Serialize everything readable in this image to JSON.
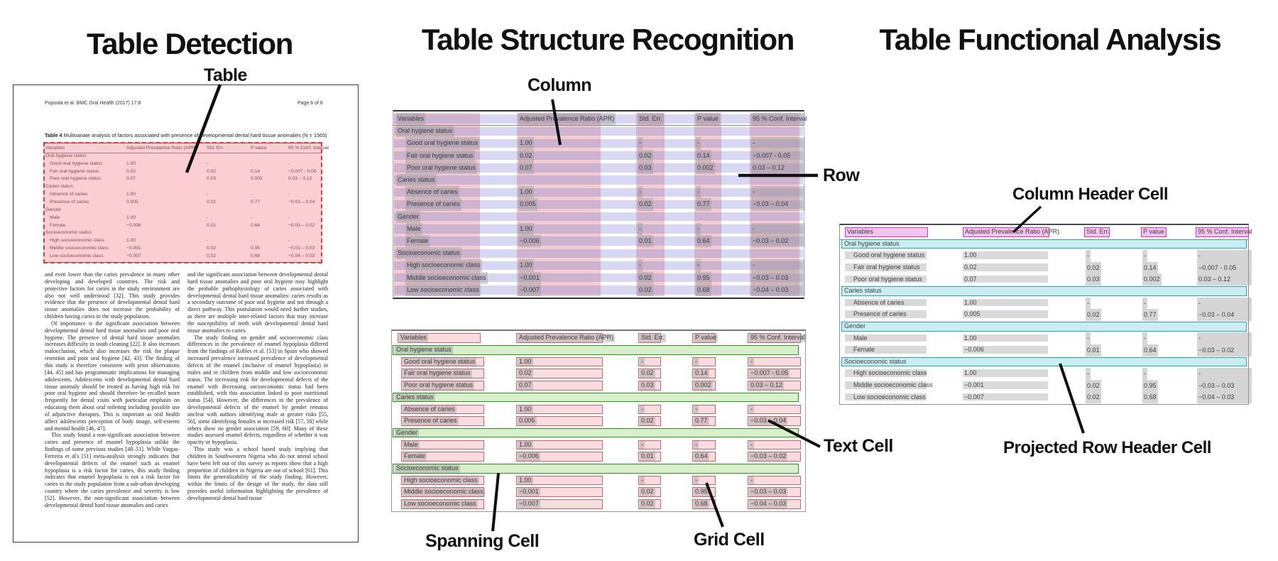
{
  "panels": {
    "detection": {
      "title": "Table Detection"
    },
    "structure": {
      "title": "Table Structure Recognition"
    },
    "functional": {
      "title": "Table Functional Analysis"
    }
  },
  "callouts": {
    "table": "Table",
    "column": "Column",
    "row": "Row",
    "spanning_cell": "Spanning Cell",
    "grid_cell": "Grid Cell",
    "text_cell": "Text Cell",
    "column_header_cell": "Column Header Cell",
    "projected_row_header_cell": "Projected Row Header Cell"
  },
  "document": {
    "header_left": "Popoola et al. BMC Oral Health  (2017) 17:8",
    "header_right": "Page 6 of 8",
    "caption_label": "Table 4",
    "caption_text": " Multivariate analysis of factors associated with presence of developmental dental hard tissue anomalies (N = 1565)",
    "body_col1": [
      "and even lower than the caries prevalence in many other developing and developed countries. The risk and protective factors for caries in the study environment are also not well understood [32]. This study provides evidence that the presence of developmental dental hard tissue anomalies does not increase the probability of children having caries in the study population.",
      "Of importance is the significant association between developmental dental hard tissue anomalies and poor oral hygiene. The presence of dental hard tissue anomalies increases difficulty in tooth cleaning [22]. It also increases malocclusion, which also increases the risk for plaque retention and poor oral hygiene [42, 43]. The finding of this study is therefore consistent with prior observations [44, 45] and has programmatic implications for managing adolescents. Adolescents with developmental dental hard tissue anomaly should be treated as having high risk for poor oral hygiene and should therefore be recalled more frequently for dental visits with particular emphasis on educating them about oral toileting including possible use of adjunctive therapies. This is important as oral health affect adolescents perception of body image, self-esteem and mental health [46, 47].",
      "This study found a non-significant association between caries and presence of enamel hypoplasia unlike the findings of some previous studies [48–51]. While Vargas-Ferreira et al's [51] meta-analysis strongly indicates that developmental defects of the enamel such as enamel hypoplasia is a risk factor for caries, this study finding indicates that enamel hypoplasia is not a risk factor for caries in the study population from a sub-urban developing country where the caries prevalence and severity is low [52]. However, the non-significant association between developmental dental hard tissue anomalies and caries"
    ],
    "body_col2": [
      "and the significant association between developmental dental hard tissue anomalies and poor oral hygiene may highlight the probable pathophysiology of caries associated with developmental dental hard tissue anomalies: caries results as a secondary outcome of poor oral hygiene and not through a direct pathway. This postulation would need further studies, as there are multiple inter-related factors that may increase the susceptibility of teeth with developmental dental hard tissue anomalies to caries.",
      "The study finding on gender and socioeconomic class differences in the prevalence of enamel hypoplasia differed from the findings of Robles et al. [53] in Spain who showed increased prevalence increased prevalence of developmental defects of the enamel (inclusive of enamel hypoplasia) in males and in children from middle and low socioeconomic status. The increasing risk for developmental defects of the enamel with decreasing socioeconomic status had been established, with this association linked to poor nutritional status [54]. However, the differences in the prevalence of developmental defects of the enamel by gender remains unclear with authors identifying male at greater risks [55, 56], some identifying females at increased risk [57, 58] while others show no gender association [59, 60]. Many of these studies assessed enamel defects, regardless of whether it was opacity or hypoplasia.",
      "This study was a school based study implying that children in Southwestern Nigeria who do not attend school have been left out of this survey as reports show that a high proportion of children in Nigeria are out of school [61]. This limits the generalizability of the study finding. However, within the limits of the design of the study, the data still provides useful information highlighting the prevalence of developmental dental hard tissue"
    ]
  },
  "table": {
    "headers": [
      "Variables",
      "Adjusted Prevalence Ratio (APR)",
      "Std. Err.",
      "P value",
      "95 % Conf. Interval"
    ],
    "rows": [
      {
        "type": "section",
        "label": "Oral hygiene status"
      },
      {
        "type": "data",
        "label": "Good oral hygiene status",
        "apr": "1.00",
        "se": "-",
        "p": "-",
        "ci": "-"
      },
      {
        "type": "data",
        "label": "Fair oral hygiene status",
        "apr": "0.02",
        "se": "0.02",
        "p": "0.14",
        "ci": "−0.007 - 0.05"
      },
      {
        "type": "data",
        "label": "Poor oral hygiene status",
        "apr": "0.07",
        "se": "0.03",
        "p": "0.002",
        "ci": "0.03 – 0.12"
      },
      {
        "type": "section",
        "label": "Caries status"
      },
      {
        "type": "data",
        "label": "Absence of caries",
        "apr": "1.00",
        "se": "-",
        "p": "-",
        "ci": "-"
      },
      {
        "type": "data",
        "label": "Presence of caries",
        "apr": "0.005",
        "se": "0.02",
        "p": "0.77",
        "ci": "−0.03 – 0.04"
      },
      {
        "type": "section",
        "label": "Gender"
      },
      {
        "type": "data",
        "label": "Male",
        "apr": "1.00",
        "se": "-",
        "p": "-",
        "ci": "-"
      },
      {
        "type": "data",
        "label": "Female",
        "apr": "−0.006",
        "se": "0.01",
        "p": "0.64",
        "ci": "−0.03 – 0.02"
      },
      {
        "type": "section",
        "label": "Socioeconomic status"
      },
      {
        "type": "data",
        "label": "High socioeconomic class",
        "apr": "1.00",
        "se": "-",
        "p": "-",
        "ci": "-"
      },
      {
        "type": "data",
        "label": "Middle socioeconomic class",
        "apr": "−0.001",
        "se": "0.02",
        "p": "0.95",
        "ci": "−0.03 – 0.03"
      },
      {
        "type": "data",
        "label": "Low socioeconomic class",
        "apr": "−0.007",
        "se": "0.02",
        "p": "0.68",
        "ci": "−0.04 – 0.03"
      }
    ]
  },
  "colors": {
    "column_overlay": "rgba(213,86,99,0.30)",
    "row_overlay": "rgba(110,110,214,0.27)",
    "grid_cell_fill": "#fadcdf",
    "grid_cell_border": "#b06d74",
    "spanning_cell_fill": "#d9efca",
    "spanning_cell_border": "#2f8f2f",
    "column_header_fill": "#f4c4ec",
    "column_header_border": "#bf3fbf",
    "projected_row_fill": "#c9edf0",
    "projected_row_border": "#2fa3ad",
    "detection_overlay_fill": "rgba(240,112,122,0.34)",
    "detection_overlay_border": "#cf4040",
    "text_highlight": "rgba(150,150,150,0.40)"
  }
}
